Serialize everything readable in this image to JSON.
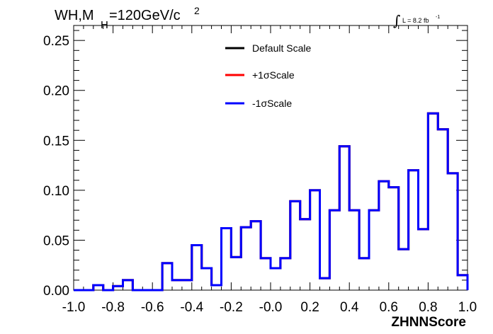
{
  "chart_data": {
    "type": "line",
    "title": "WH,M",
    "title_sub": "H",
    "title_rest": "=120GeV/c",
    "title_sup": "2",
    "annotation": {
      "integral": "∫",
      "text": "L = 8.2 fb",
      "sup": "-1"
    },
    "xlabel": "ZHNNScore",
    "ylabel": "",
    "xlim": [
      -1.0,
      1.0
    ],
    "ylim": [
      0.0,
      0.265
    ],
    "x_ticks": [
      "-1.0",
      "-0.8",
      "-0.6",
      "-0.4",
      "-0.2",
      "-0.0",
      "0.2",
      "0.4",
      "0.6",
      "0.8",
      "1.0"
    ],
    "y_ticks": [
      "0.00",
      "0.05",
      "0.10",
      "0.15",
      "0.20",
      "0.25"
    ],
    "bin_edges": [
      -1.0,
      -0.95,
      -0.9,
      -0.85,
      -0.8,
      -0.75,
      -0.7,
      -0.65,
      -0.6,
      -0.55,
      -0.5,
      -0.45,
      -0.4,
      -0.35,
      -0.3,
      -0.25,
      -0.2,
      -0.15,
      -0.1,
      -0.05,
      0.0,
      0.05,
      0.1,
      0.15,
      0.2,
      0.25,
      0.3,
      0.35,
      0.4,
      0.45,
      0.5,
      0.55,
      0.6,
      0.65,
      0.7,
      0.75,
      0.8,
      0.85,
      0.9,
      0.95,
      1.0
    ],
    "legend_position": "top-center",
    "series": [
      {
        "name": "Default Scale",
        "color": "#000000",
        "values": [
          0.0,
          0.0,
          0.005,
          0.0,
          0.004,
          0.01,
          0.0,
          0.0,
          0.0,
          0.027,
          0.01,
          0.01,
          0.045,
          0.022,
          0.005,
          0.062,
          0.033,
          0.063,
          0.069,
          0.032,
          0.022,
          0.032,
          0.089,
          0.071,
          0.1,
          0.012,
          0.08,
          0.144,
          0.08,
          0.032,
          0.08,
          0.109,
          0.103,
          0.041,
          0.12,
          0.061,
          0.177,
          0.161,
          0.117,
          0.015
        ]
      },
      {
        "name": "+1σScale",
        "color": "#ff0000",
        "values": [
          0.0,
          0.0,
          0.005,
          0.0,
          0.004,
          0.01,
          0.0,
          0.0,
          0.0,
          0.027,
          0.01,
          0.01,
          0.045,
          0.022,
          0.005,
          0.062,
          0.033,
          0.063,
          0.069,
          0.032,
          0.022,
          0.032,
          0.089,
          0.071,
          0.1,
          0.012,
          0.08,
          0.144,
          0.08,
          0.032,
          0.08,
          0.109,
          0.103,
          0.041,
          0.12,
          0.061,
          0.177,
          0.161,
          0.117,
          0.015
        ]
      },
      {
        "name": "-1σScale",
        "color": "#0000ff",
        "values": [
          0.0,
          0.0,
          0.005,
          0.0,
          0.004,
          0.01,
          0.0,
          0.0,
          0.0,
          0.027,
          0.01,
          0.01,
          0.045,
          0.022,
          0.005,
          0.062,
          0.033,
          0.063,
          0.069,
          0.032,
          0.022,
          0.032,
          0.089,
          0.071,
          0.1,
          0.012,
          0.08,
          0.144,
          0.08,
          0.032,
          0.08,
          0.109,
          0.103,
          0.041,
          0.12,
          0.061,
          0.177,
          0.161,
          0.117,
          0.015
        ]
      }
    ]
  }
}
